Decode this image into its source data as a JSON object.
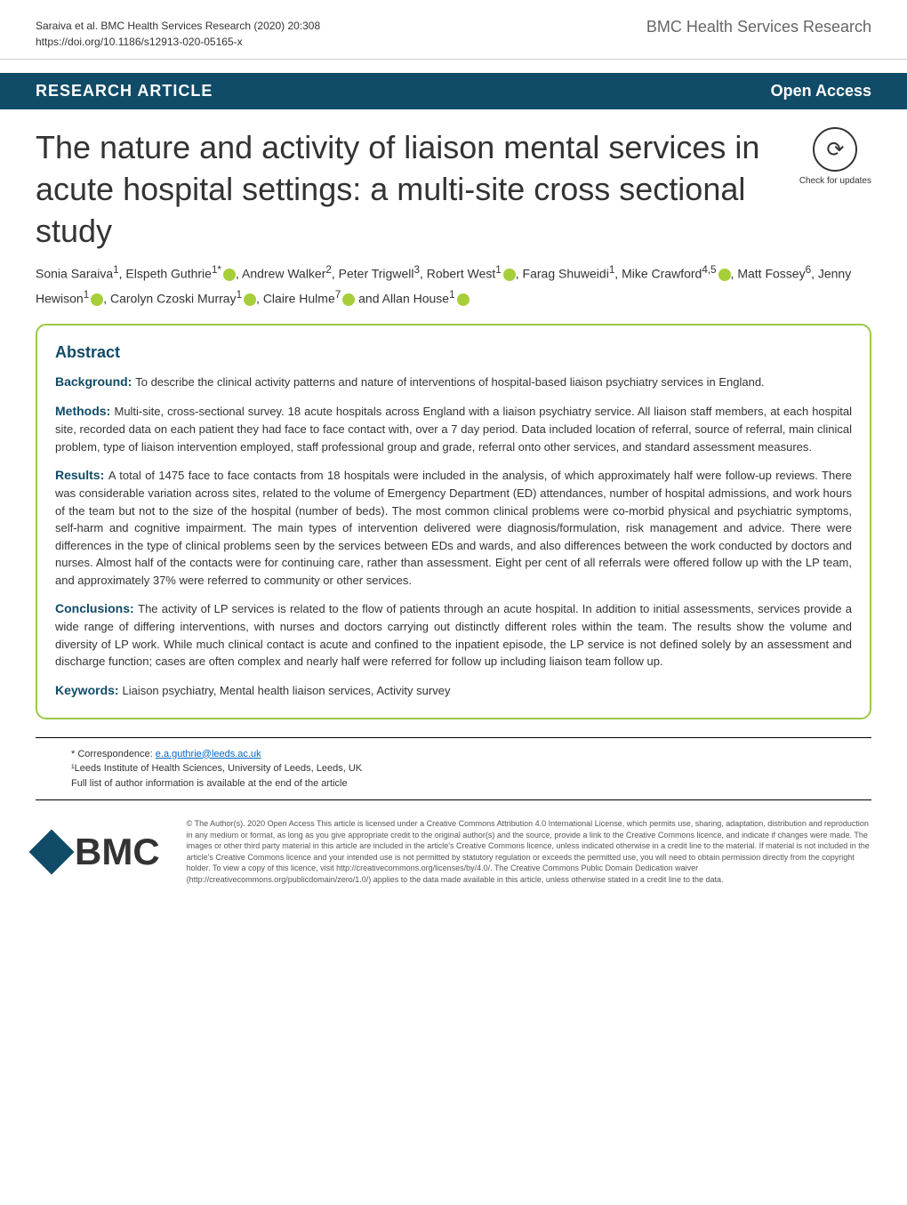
{
  "header": {
    "citation": "Saraiva et al. BMC Health Services Research       (2020) 20:308",
    "doi": "https://doi.org/10.1186/s12913-020-05165-x",
    "journal": "BMC Health Services Research"
  },
  "article_type_bar": {
    "type": "RESEARCH ARTICLE",
    "access": "Open Access"
  },
  "title": "The nature and activity of liaison mental services in acute hospital settings: a multi-site cross sectional study",
  "check_updates": "Check for updates",
  "authors_html": "Sonia Saraiva<sup>1</sup>, Elspeth Guthrie<sup>1*</sup><span class='orcid'></span>, Andrew Walker<sup>2</sup>, Peter Trigwell<sup>3</sup>, Robert West<sup>1</sup><span class='orcid'></span>, Farag Shuweidi<sup>1</sup>, Mike Crawford<sup>4,5</sup><span class='orcid'></span>, Matt Fossey<sup>6</sup>, Jenny Hewison<sup>1</sup><span class='orcid'></span>, Carolyn Czoski Murray<sup>1</sup><span class='orcid'></span>, Claire Hulme<sup>7</sup><span class='orcid'></span> and Allan House<sup>1</sup><span class='orcid'></span>",
  "abstract": {
    "heading": "Abstract",
    "sections": [
      {
        "label": "Background:",
        "text": "To describe the clinical activity patterns and nature of interventions of hospital-based liaison psychiatry services in England."
      },
      {
        "label": "Methods:",
        "text": "Multi-site, cross-sectional survey. 18 acute hospitals across England with a liaison psychiatry service. All liaison staff members, at each hospital site, recorded data on each patient they had face to face contact with, over a 7 day period. Data included location of referral, source of referral, main clinical problem, type of liaison intervention employed, staff professional group and grade, referral onto other services, and standard assessment measures."
      },
      {
        "label": "Results:",
        "text": "A total of 1475 face to face contacts from 18 hospitals were included in the analysis, of which approximately half were follow-up reviews. There was considerable variation across sites, related to the volume of Emergency Department (ED) attendances, number of hospital admissions, and work hours of the team but not to the size of the hospital (number of beds). The most common clinical problems were co-morbid physical and psychiatric symptoms, self-harm and cognitive impairment. The main types of intervention delivered were diagnosis/formulation, risk management and advice. There were differences in the type of clinical problems seen by the services between EDs and wards, and also differences between the work conducted by doctors and nurses. Almost half of the contacts were for continuing care, rather than assessment. Eight per cent of all referrals were offered follow up with the LP team, and approximately 37% were referred to community or other services."
      },
      {
        "label": "Conclusions:",
        "text": "The activity of LP services is related to the flow of patients through an acute hospital. In addition to initial assessments, services provide a wide range of differing interventions, with nurses and doctors carrying out distinctly different roles within the team. The results show the volume and diversity of LP work. While much clinical contact is acute and confined to the inpatient episode, the LP service is not defined solely by an assessment and discharge function; cases are often complex and nearly half were referred for follow up including liaison team follow up."
      },
      {
        "label": "Keywords:",
        "text": "Liaison psychiatry, Mental health liaison services, Activity survey"
      }
    ]
  },
  "correspondence": {
    "marker": "* Correspondence:",
    "email": "e.a.guthrie@leeds.ac.uk",
    "affiliation": "¹Leeds Institute of Health Sciences, University of Leeds, Leeds, UK",
    "note": "Full list of author information is available at the end of the article"
  },
  "footer": {
    "logo": "BMC",
    "license": "© The Author(s). 2020 Open Access This article is licensed under a Creative Commons Attribution 4.0 International License, which permits use, sharing, adaptation, distribution and reproduction in any medium or format, as long as you give appropriate credit to the original author(s) and the source, provide a link to the Creative Commons licence, and indicate if changes were made. The images or other third party material in this article are included in the article's Creative Commons licence, unless indicated otherwise in a credit line to the material. If material is not included in the article's Creative Commons licence and your intended use is not permitted by statutory regulation or exceeds the permitted use, you will need to obtain permission directly from the copyright holder. To view a copy of this licence, visit http://creativecommons.org/licenses/by/4.0/. The Creative Commons Public Domain Dedication waiver (http://creativecommons.org/publicdomain/zero/1.0/) applies to the data made available in this article, unless otherwise stated in a credit line to the data."
  },
  "colors": {
    "bar_bg": "#104b67",
    "abstract_border": "#9ac946",
    "orcid_bg": "#a6ce39",
    "link": "#0066cc"
  }
}
